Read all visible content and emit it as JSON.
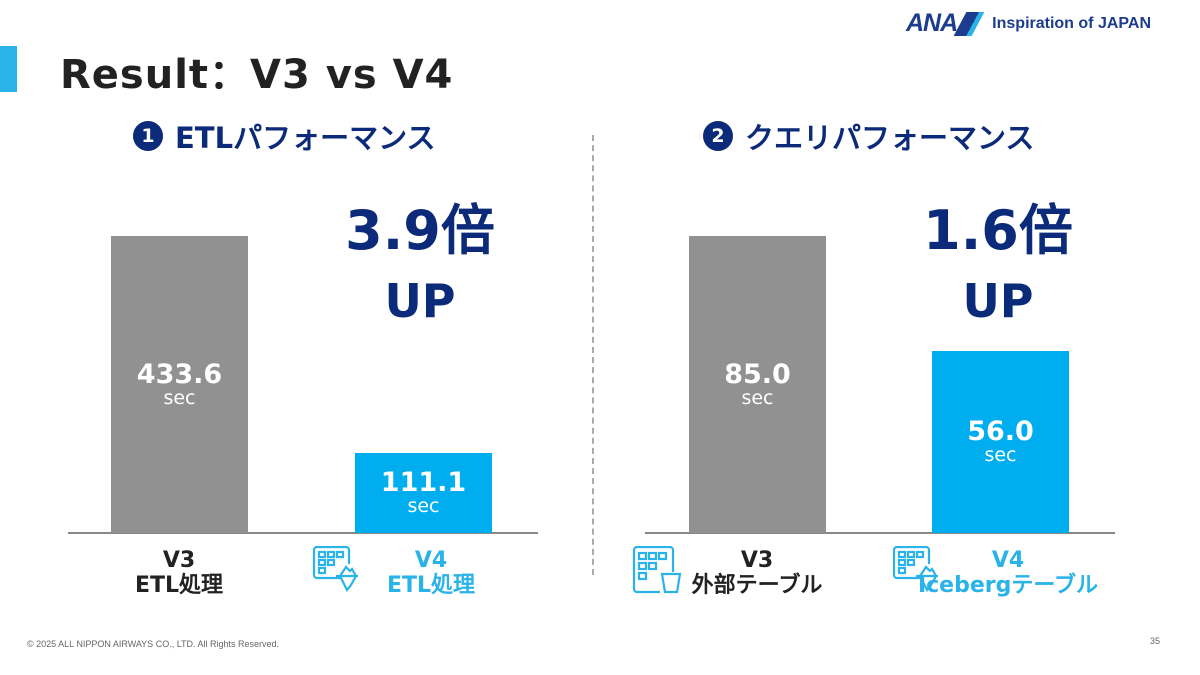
{
  "title": "Result：V3 vs V4",
  "logo": {
    "brand": "ANA",
    "tagline": "Inspiration of JAPAN"
  },
  "colors": {
    "v3": "#919191",
    "v4": "#00aeef",
    "navy": "#0b2a7a"
  },
  "sections": [
    {
      "number": "1",
      "title": "ETLパフォーマンス",
      "ratio": "3.9倍",
      "up": "UP"
    },
    {
      "number": "2",
      "title": "クエリパフォーマンス",
      "ratio": "1.6倍",
      "up": "UP"
    }
  ],
  "chart_data": [
    {
      "type": "bar",
      "title": "ETLパフォーマンス",
      "unit": "sec",
      "categories": [
        "V3 ETL処理",
        "V4 ETL処理"
      ],
      "values": [
        433.6,
        111.1
      ],
      "value_labels": [
        "433.6",
        "111.1"
      ],
      "xlabels": [
        [
          "V3",
          "ETL処理"
        ],
        [
          "V4",
          "ETL処理"
        ]
      ]
    },
    {
      "type": "bar",
      "title": "クエリパフォーマンス",
      "unit": "sec",
      "categories": [
        "V3 外部テーブル",
        "V4 Icebergテーブル"
      ],
      "values": [
        85.0,
        56.0
      ],
      "value_labels": [
        "85.0",
        "56.0"
      ],
      "xlabels": [
        [
          "V3",
          "外部テーブル"
        ],
        [
          "V4",
          "Icebergテーブル"
        ]
      ]
    }
  ],
  "footer": "© 2025 ALL NIPPON AIRWAYS CO., LTD. All Rights Reserved.",
  "page_number": "35"
}
